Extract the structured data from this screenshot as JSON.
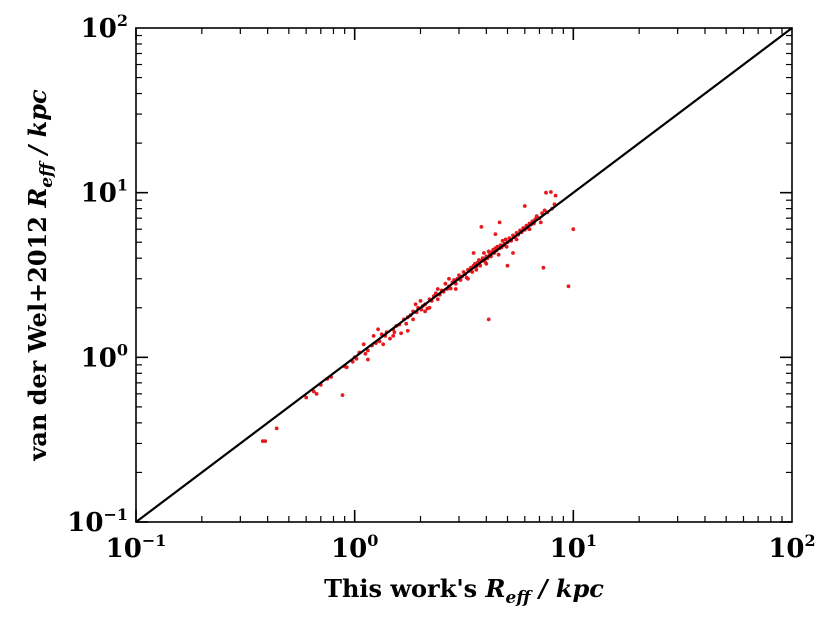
{
  "chart_data": {
    "type": "scatter",
    "xlabel": {
      "prefix": "This work's ",
      "var": "R",
      "sub": "eff",
      "unit": " / kpc"
    },
    "ylabel": {
      "prefix": "van der Wel+2012 ",
      "var": "R",
      "sub": "eff",
      "unit": " / kpc"
    },
    "x_scale": "log",
    "y_scale": "log",
    "xlim": [
      0.1,
      100
    ],
    "ylim": [
      0.1,
      100
    ],
    "x_ticks": [
      {
        "value": 0.1,
        "base": "10",
        "exp": "−1"
      },
      {
        "value": 1,
        "base": "10",
        "exp": "0"
      },
      {
        "value": 10,
        "base": "10",
        "exp": "1"
      },
      {
        "value": 100,
        "base": "10",
        "exp": "2"
      }
    ],
    "y_ticks": [
      {
        "value": 0.1,
        "base": "10",
        "exp": "−1"
      },
      {
        "value": 1,
        "base": "10",
        "exp": "0"
      },
      {
        "value": 10,
        "base": "10",
        "exp": "1"
      },
      {
        "value": 100,
        "base": "10",
        "exp": "2"
      }
    ],
    "grid": false,
    "marker_color": "#e8191c",
    "line_color": "#000000",
    "reference_line": {
      "type": "one-to-one",
      "from": [
        0.1,
        0.1
      ],
      "to": [
        100,
        100
      ]
    },
    "points": [
      [
        0.38,
        0.31
      ],
      [
        0.39,
        0.31
      ],
      [
        0.44,
        0.37
      ],
      [
        0.6,
        0.57
      ],
      [
        0.65,
        0.62
      ],
      [
        0.67,
        0.6
      ],
      [
        0.7,
        0.68
      ],
      [
        0.75,
        0.74
      ],
      [
        0.78,
        0.76
      ],
      [
        0.88,
        0.59
      ],
      [
        0.9,
        0.88
      ],
      [
        0.92,
        0.87
      ],
      [
        0.98,
        0.94
      ],
      [
        1.0,
        1.0
      ],
      [
        1.02,
        0.98
      ],
      [
        1.05,
        1.07
      ],
      [
        1.1,
        1.2
      ],
      [
        1.12,
        1.05
      ],
      [
        1.15,
        1.1
      ],
      [
        1.2,
        1.18
      ],
      [
        1.22,
        1.35
      ],
      [
        1.25,
        1.22
      ],
      [
        1.28,
        1.48
      ],
      [
        1.3,
        1.25
      ],
      [
        1.33,
        1.38
      ],
      [
        1.38,
        1.35
      ],
      [
        1.4,
        1.42
      ],
      [
        1.45,
        1.3
      ],
      [
        1.5,
        1.48
      ],
      [
        1.52,
        1.42
      ],
      [
        1.55,
        1.55
      ],
      [
        1.6,
        1.58
      ],
      [
        1.63,
        1.4
      ],
      [
        1.68,
        1.7
      ],
      [
        1.72,
        1.6
      ],
      [
        1.75,
        1.75
      ],
      [
        1.8,
        1.8
      ],
      [
        1.85,
        1.9
      ],
      [
        1.9,
        2.1
      ],
      [
        1.92,
        1.88
      ],
      [
        1.95,
        2.0
      ],
      [
        2.0,
        2.2
      ],
      [
        2.02,
        1.95
      ],
      [
        2.05,
        2.05
      ],
      [
        2.1,
        2.1
      ],
      [
        2.15,
        1.98
      ],
      [
        2.2,
        2.25
      ],
      [
        2.25,
        2.2
      ],
      [
        2.3,
        2.35
      ],
      [
        2.35,
        2.45
      ],
      [
        2.4,
        2.25
      ],
      [
        2.45,
        2.4
      ],
      [
        2.5,
        2.55
      ],
      [
        2.55,
        2.5
      ],
      [
        2.6,
        2.8
      ],
      [
        2.65,
        2.6
      ],
      [
        2.7,
        2.7
      ],
      [
        2.75,
        2.62
      ],
      [
        2.8,
        2.85
      ],
      [
        2.85,
        2.95
      ],
      [
        2.9,
        2.8
      ],
      [
        2.95,
        3.0
      ],
      [
        3.0,
        3.15
      ],
      [
        3.05,
        2.95
      ],
      [
        3.1,
        3.1
      ],
      [
        3.15,
        3.3
      ],
      [
        3.2,
        3.2
      ],
      [
        3.25,
        3.05
      ],
      [
        3.3,
        3.4
      ],
      [
        3.35,
        3.35
      ],
      [
        3.4,
        3.5
      ],
      [
        3.45,
        3.3
      ],
      [
        3.5,
        3.6
      ],
      [
        3.55,
        3.7
      ],
      [
        3.6,
        3.55
      ],
      [
        3.65,
        3.75
      ],
      [
        3.7,
        3.9
      ],
      [
        3.75,
        3.6
      ],
      [
        3.8,
        3.85
      ],
      [
        3.85,
        4.0
      ],
      [
        3.9,
        4.3
      ],
      [
        3.95,
        3.8
      ],
      [
        4.0,
        4.1
      ],
      [
        4.05,
        4.0
      ],
      [
        4.1,
        4.4
      ],
      [
        4.15,
        4.2
      ],
      [
        4.2,
        4.1
      ],
      [
        4.25,
        4.35
      ],
      [
        4.3,
        4.5
      ],
      [
        4.35,
        4.3
      ],
      [
        4.4,
        4.6
      ],
      [
        4.45,
        4.45
      ],
      [
        4.5,
        4.7
      ],
      [
        4.55,
        4.2
      ],
      [
        4.6,
        4.6
      ],
      [
        4.65,
        4.8
      ],
      [
        4.7,
        4.65
      ],
      [
        4.75,
        5.1
      ],
      [
        4.8,
        4.8
      ],
      [
        4.85,
        4.9
      ],
      [
        4.9,
        5.2
      ],
      [
        4.95,
        4.7
      ],
      [
        5.0,
        5.0
      ],
      [
        5.1,
        5.3
      ],
      [
        5.2,
        5.1
      ],
      [
        5.3,
        5.5
      ],
      [
        5.4,
        5.35
      ],
      [
        5.5,
        5.7
      ],
      [
        5.6,
        5.55
      ],
      [
        5.7,
        5.9
      ],
      [
        5.8,
        5.75
      ],
      [
        5.9,
        6.1
      ],
      [
        6.0,
        5.95
      ],
      [
        6.1,
        6.3
      ],
      [
        6.2,
        6.1
      ],
      [
        6.3,
        6.5
      ],
      [
        6.4,
        6.4
      ],
      [
        6.5,
        6.7
      ],
      [
        6.6,
        6.5
      ],
      [
        6.7,
        6.9
      ],
      [
        6.8,
        7.2
      ],
      [
        7.0,
        7.0
      ],
      [
        7.2,
        7.5
      ],
      [
        7.4,
        7.8
      ],
      [
        7.6,
        7.6
      ],
      [
        8.0,
        8.0
      ],
      [
        8.2,
        8.5
      ],
      [
        7.5,
        10.0
      ],
      [
        7.9,
        10.1
      ],
      [
        8.3,
        9.6
      ],
      [
        4.6,
        6.6
      ],
      [
        3.8,
        6.2
      ],
      [
        4.4,
        5.6
      ],
      [
        5.3,
        4.3
      ],
      [
        5.0,
        3.6
      ],
      [
        7.3,
        3.5
      ],
      [
        4.1,
        1.7
      ],
      [
        9.5,
        2.7
      ],
      [
        10.0,
        6.0
      ],
      [
        6.0,
        8.3
      ],
      [
        3.5,
        4.3
      ],
      [
        2.1,
        1.9
      ],
      [
        1.75,
        1.45
      ],
      [
        1.5,
        1.35
      ],
      [
        2.7,
        3.0
      ],
      [
        3.3,
        3.0
      ],
      [
        5.5,
        5.2
      ],
      [
        6.3,
        6.0
      ],
      [
        7.1,
        6.6
      ],
      [
        2.4,
        2.6
      ],
      [
        1.85,
        1.7
      ],
      [
        4.0,
        3.7
      ],
      [
        3.6,
        3.4
      ],
      [
        2.2,
        2.0
      ],
      [
        2.9,
        2.6
      ],
      [
        1.35,
        1.2
      ],
      [
        1.15,
        0.97
      ]
    ]
  }
}
